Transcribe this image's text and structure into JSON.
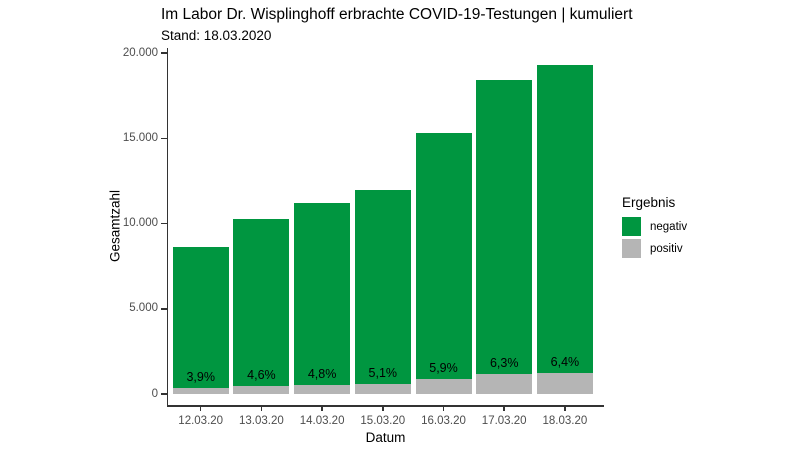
{
  "chart_data": {
    "type": "bar",
    "stacked": true,
    "title": "Im Labor Dr. Wisplinghoff erbrachte COVID-19-Testungen | kumuliert",
    "subtitle": "Stand: 18.03.2020",
    "xlabel": "Datum",
    "ylabel": "Gesamtzahl",
    "categories": [
      "12.03.20",
      "13.03.20",
      "14.03.20",
      "15.03.20",
      "16.03.20",
      "17.03.20",
      "18.03.20"
    ],
    "series": [
      {
        "name": "negativ",
        "color": "#009640",
        "values": [
          8313,
          9778,
          10662,
          11341,
          14397,
          17241,
          18065
        ]
      },
      {
        "name": "positiv",
        "color": "#b5b5b5",
        "values": [
          337,
          472,
          538,
          609,
          903,
          1159,
          1235
        ]
      }
    ],
    "totals": [
      8650,
      10250,
      11200,
      11950,
      15300,
      18400,
      19300
    ],
    "percent_positive": [
      3.9,
      4.6,
      4.8,
      5.1,
      5.9,
      6.3,
      6.4
    ],
    "bar_labels": [
      "3,9%",
      "4,6%",
      "4,8%",
      "5,1%",
      "5,9%",
      "6,3%",
      "6,4%"
    ],
    "y_ticks": [
      "0",
      "5.000",
      "10.000",
      "15.000",
      "20.000"
    ],
    "y_tick_values": [
      0,
      5000,
      10000,
      15000,
      20000
    ],
    "ylim": [
      0,
      20000
    ],
    "grid": false,
    "legend_position": "right",
    "legend": {
      "title": "Ergebnis",
      "items": [
        {
          "label": "negativ",
          "color": "#009640"
        },
        {
          "label": "positiv",
          "color": "#b5b5b5"
        }
      ]
    }
  }
}
